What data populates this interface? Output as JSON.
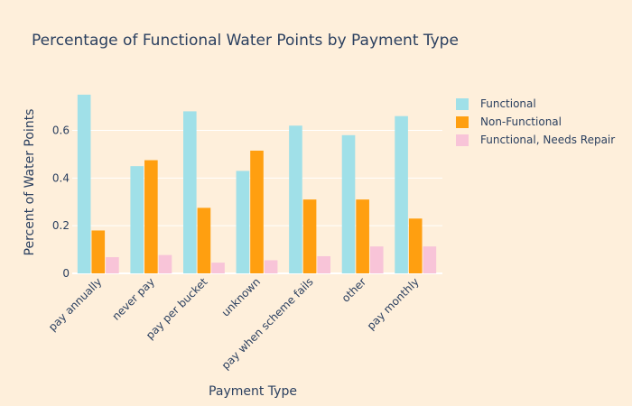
{
  "chart_data": {
    "type": "bar",
    "title": "Percentage of Functional Water Points by Payment Type",
    "xlabel": "Payment Type",
    "ylabel": "Percent of Water Points",
    "categories": [
      "pay annually",
      "never pay",
      "pay per bucket",
      "unknown",
      "pay when scheme fails",
      "other",
      "pay monthly"
    ],
    "series": [
      {
        "name": "Functional",
        "color": "#a0e0e8",
        "values": [
          0.75,
          0.45,
          0.68,
          0.43,
          0.62,
          0.58,
          0.66
        ]
      },
      {
        "name": "Non-Functional",
        "color": "#ff9f10",
        "values": [
          0.18,
          0.475,
          0.275,
          0.515,
          0.31,
          0.31,
          0.23
        ]
      },
      {
        "name": "Functional, Needs Repair",
        "color": "#f8c4d8",
        "values": [
          0.068,
          0.077,
          0.045,
          0.055,
          0.072,
          0.113,
          0.113
        ]
      }
    ],
    "ylim": [
      0,
      0.78
    ],
    "yticks": [
      0,
      0.2,
      0.4,
      0.6
    ],
    "ytick_labels": [
      "0",
      "0.2",
      "0.4",
      "0.6"
    ],
    "grid": true,
    "legend_position": "top-right"
  }
}
